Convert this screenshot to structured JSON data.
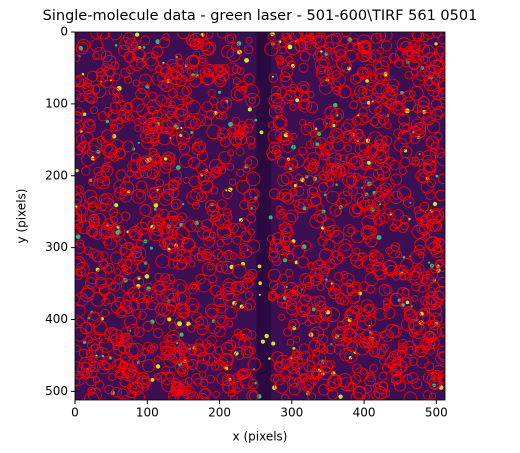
{
  "chart_data": {
    "type": "image",
    "title": "Single-molecule data - green laser - 501-600\\TIRF 561 0501",
    "xlabel": "x (pixels)",
    "ylabel": "y (pixels)",
    "xlim": [
      0,
      512
    ],
    "ylim": [
      512,
      0
    ],
    "xticks": [
      0,
      100,
      200,
      300,
      400,
      500
    ],
    "yticks": [
      0,
      100,
      200,
      300,
      400,
      500
    ],
    "marker_color": "#ff0000"
  }
}
